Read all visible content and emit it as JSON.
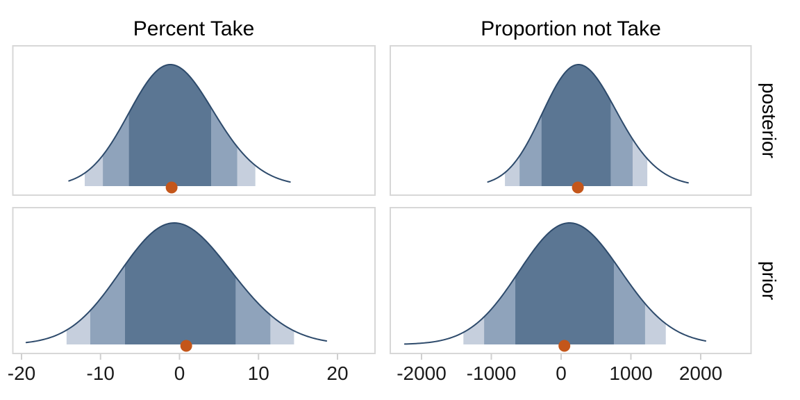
{
  "chart_data": {
    "type": "density",
    "facet_columns": [
      "Percent Take",
      "Proportion not Take"
    ],
    "facet_rows": [
      "posterior",
      "prior"
    ],
    "legend": "none",
    "grid": "off",
    "x_axes": [
      {
        "column": "Percent Take",
        "ticks": [
          -20,
          -10,
          0,
          10,
          20
        ],
        "tick_labels": [
          "-20",
          "-10",
          "0",
          "10",
          "20"
        ],
        "range": [
          -21.1,
          24.8
        ]
      },
      {
        "column": "Proportion not Take",
        "ticks": [
          -2000,
          -1000,
          0,
          1000,
          2000
        ],
        "tick_labels": [
          "-2000",
          "-1000",
          "0",
          "1000",
          "2000"
        ],
        "range": [
          -2445,
          2720
        ]
      }
    ],
    "panels": [
      {
        "row": "posterior",
        "column": "Percent Take",
        "point_estimate": -1.0,
        "intervals": {
          "inner": [
            -6.4,
            4.0
          ],
          "middle": [
            -9.7,
            7.3
          ],
          "outer": [
            -12.0,
            9.6
          ]
        },
        "density": {
          "extent": [
            -14,
            14
          ],
          "components": [
            {
              "weight": 0.55,
              "mean": -2.3,
              "sd": 4.8
            },
            {
              "weight": 0.45,
              "mean": 1.2,
              "sd": 5.6
            }
          ]
        },
        "summary": {
          "mean": -1.2,
          "sd": 5.5
        }
      },
      {
        "row": "posterior",
        "column": "Proportion not Take",
        "point_estimate": 240,
        "intervals": {
          "inner": [
            -280,
            710
          ],
          "middle": [
            -595,
            1025
          ],
          "outer": [
            -805,
            1235
          ]
        },
        "density": {
          "extent": [
            -1050,
            1820
          ],
          "components": [
            {
              "weight": 0.6,
              "mean": 130,
              "sd": 470
            },
            {
              "weight": 0.4,
              "mean": 560,
              "sd": 540
            }
          ]
        },
        "summary": {
          "mean": 215,
          "sd": 520
        }
      },
      {
        "row": "prior",
        "column": "Percent Take",
        "point_estimate": 0.85,
        "intervals": {
          "inner": [
            -6.9,
            7.1
          ],
          "middle": [
            -11.3,
            11.5
          ],
          "outer": [
            -14.3,
            14.5
          ]
        },
        "density": {
          "extent": [
            -19.4,
            18.6
          ],
          "components": [
            {
              "weight": 0.5,
              "mean": -3.0,
              "sd": 6.0
            },
            {
              "weight": 0.5,
              "mean": 2.6,
              "sd": 6.6
            }
          ]
        },
        "summary": {
          "mean": 0.1,
          "sd": 7.35
        }
      },
      {
        "row": "prior",
        "column": "Proportion not Take",
        "point_estimate": 47,
        "intervals": {
          "inner": [
            -656,
            756
          ],
          "middle": [
            -1103,
            1203
          ],
          "outer": [
            -1400,
            1500
          ]
        },
        "density": {
          "extent": [
            -2240,
            2070
          ],
          "components": [
            {
              "weight": 0.55,
              "mean": -100,
              "sd": 660
            },
            {
              "weight": 0.45,
              "mean": 430,
              "sd": 680
            }
          ]
        },
        "summary": {
          "mean": 50,
          "sd": 740
        }
      }
    ],
    "style": {
      "colors": {
        "curve": "#2d4a6b",
        "band_inner": "#5b7693",
        "band_middle": "#8fa3bb",
        "band_outer": "#c6cfdd",
        "point": "#c4561a",
        "panel_border": "#d7d7d7",
        "tick": "#cfcfcf",
        "axis_text": "#1a1a1a",
        "title_text": "#000000",
        "panel_background": "#ffffff"
      }
    }
  }
}
